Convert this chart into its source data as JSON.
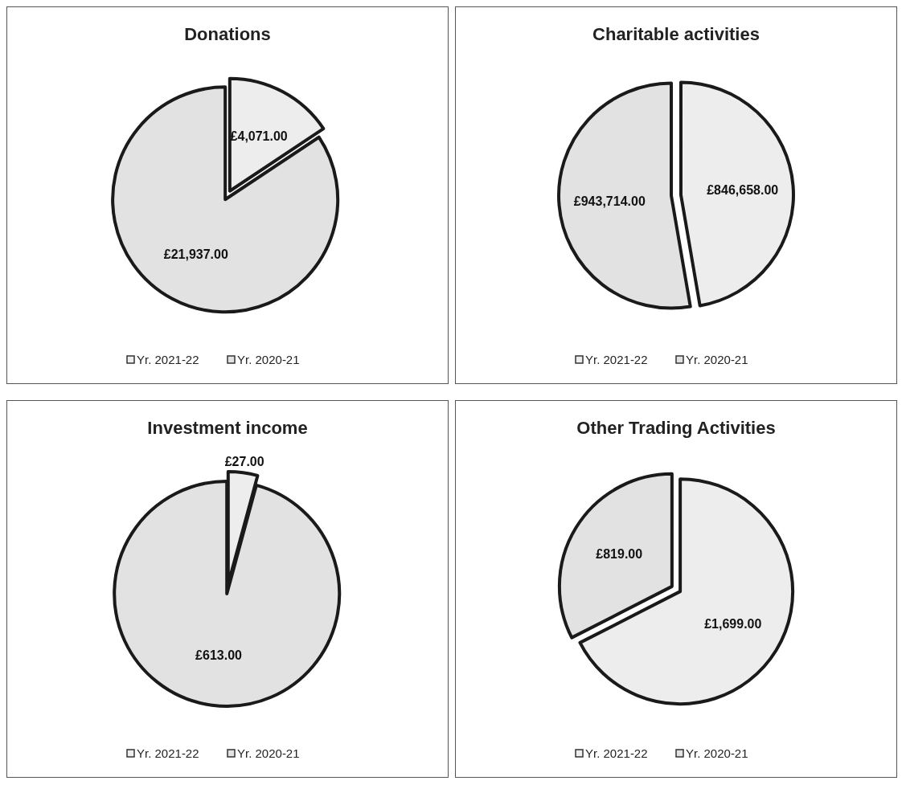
{
  "chart_data": [
    {
      "type": "pie",
      "title": "Donations",
      "categories": [
        "Yr. 2021-22",
        "Yr. 2020-21"
      ],
      "values": [
        4071,
        21937
      ],
      "value_labels": [
        "£4,071.00",
        "£21,937.00"
      ],
      "colors": [
        "#ededed",
        "#e2e2e2"
      ],
      "legend": "bottom"
    },
    {
      "type": "pie",
      "title": "Charitable activities",
      "categories": [
        "Yr. 2021-22",
        "Yr. 2020-21"
      ],
      "values": [
        846658,
        943714
      ],
      "value_labels": [
        "£846,658.00",
        "£943,714.00"
      ],
      "colors": [
        "#ededed",
        "#e2e2e2"
      ],
      "legend": "bottom"
    },
    {
      "type": "pie",
      "title": "Investment income",
      "categories": [
        "Yr. 2021-22",
        "Yr. 2020-21"
      ],
      "values": [
        27,
        613
      ],
      "value_labels": [
        "£27.00",
        "£613.00"
      ],
      "colors": [
        "#ededed",
        "#e2e2e2"
      ],
      "legend": "bottom"
    },
    {
      "type": "pie",
      "title": "Other Trading Activities",
      "categories": [
        "Yr. 2021-22",
        "Yr. 2020-21"
      ],
      "values": [
        1699,
        819
      ],
      "value_labels": [
        "£1,699.00",
        "£819.00"
      ],
      "colors": [
        "#ededed",
        "#e2e2e2"
      ],
      "legend": "bottom"
    }
  ]
}
